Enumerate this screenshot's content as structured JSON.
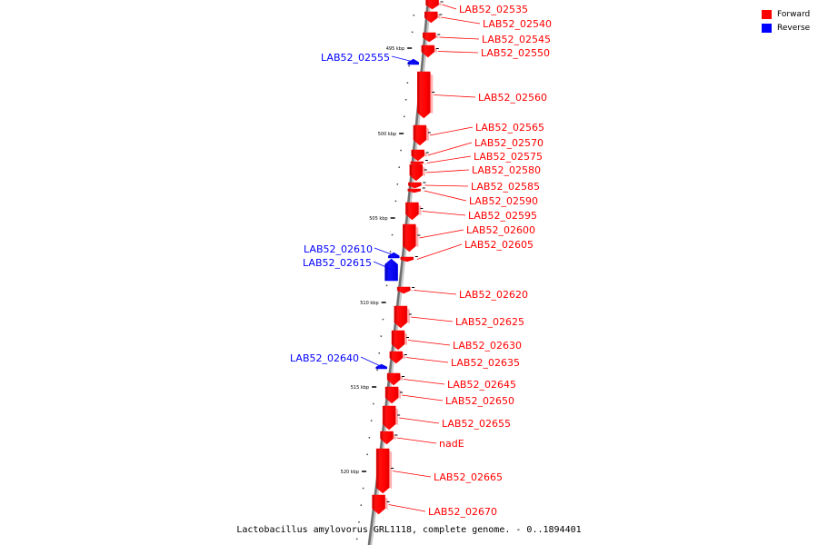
{
  "caption": "Lactobacillus amylovorus GRL1118, complete genome. - 0..1894401",
  "legend": [
    {
      "label": "Forward",
      "color": "#ff0000"
    },
    {
      "label": "Reverse",
      "color": "#0000ff"
    }
  ],
  "ticks": [
    "495 kbp",
    "500 kbp",
    "505 kbp",
    "510 kbp",
    "515 kbp",
    "520 kbp"
  ],
  "genes": [
    {
      "name": "LAB52_02535",
      "strand": "forward"
    },
    {
      "name": "LAB52_02540",
      "strand": "forward"
    },
    {
      "name": "LAB52_02545",
      "strand": "forward"
    },
    {
      "name": "LAB52_02550",
      "strand": "forward"
    },
    {
      "name": "LAB52_02555",
      "strand": "reverse"
    },
    {
      "name": "LAB52_02560",
      "strand": "forward"
    },
    {
      "name": "LAB52_02565",
      "strand": "forward"
    },
    {
      "name": "LAB52_02570",
      "strand": "forward"
    },
    {
      "name": "LAB52_02575",
      "strand": "forward"
    },
    {
      "name": "LAB52_02580",
      "strand": "forward"
    },
    {
      "name": "LAB52_02585",
      "strand": "forward"
    },
    {
      "name": "LAB52_02590",
      "strand": "forward"
    },
    {
      "name": "LAB52_02595",
      "strand": "forward"
    },
    {
      "name": "LAB52_02600",
      "strand": "forward"
    },
    {
      "name": "LAB52_02605",
      "strand": "forward"
    },
    {
      "name": "LAB52_02610",
      "strand": "reverse"
    },
    {
      "name": "LAB52_02615",
      "strand": "reverse"
    },
    {
      "name": "LAB52_02620",
      "strand": "forward"
    },
    {
      "name": "LAB52_02625",
      "strand": "forward"
    },
    {
      "name": "LAB52_02630",
      "strand": "forward"
    },
    {
      "name": "LAB52_02635",
      "strand": "forward"
    },
    {
      "name": "LAB52_02640",
      "strand": "reverse"
    },
    {
      "name": "LAB52_02645",
      "strand": "forward"
    },
    {
      "name": "LAB52_02650",
      "strand": "forward"
    },
    {
      "name": "LAB52_02655",
      "strand": "forward"
    },
    {
      "name": "nadE",
      "strand": "forward"
    },
    {
      "name": "LAB52_02665",
      "strand": "forward"
    },
    {
      "name": "LAB52_02670",
      "strand": "forward"
    }
  ]
}
